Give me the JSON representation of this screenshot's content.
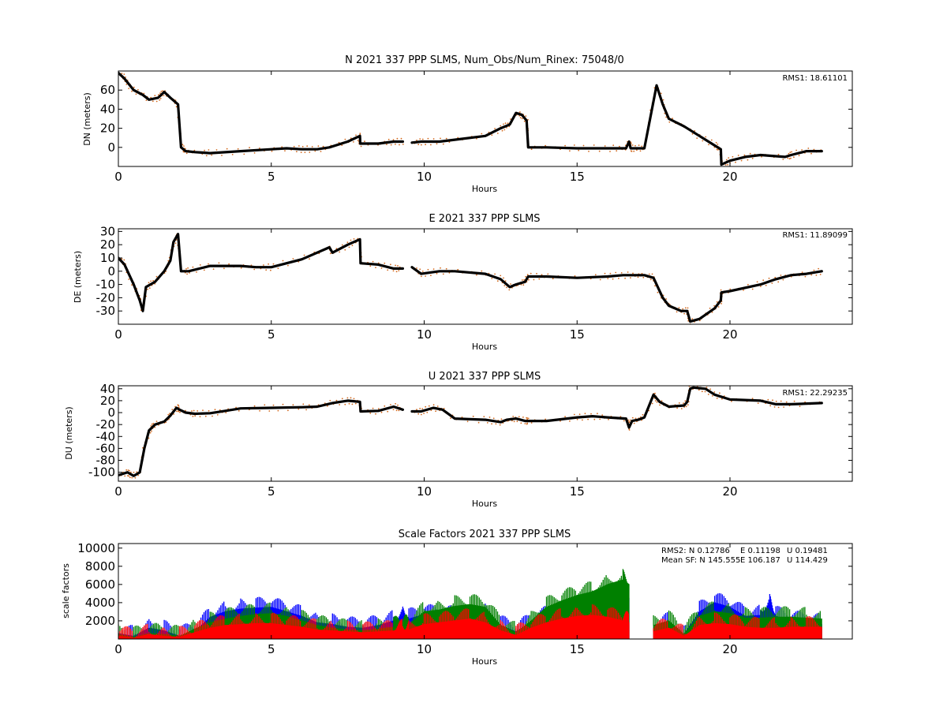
{
  "chart_data": [
    {
      "type": "scatter",
      "title": "N 2021 337 PPP  SLMS, Num_Obs/Num_Rinex: 75048/0",
      "xlabel": "Hours",
      "ylabel": "DN (meters)",
      "xlim": [
        0,
        24
      ],
      "ylim": [
        -20,
        80
      ],
      "xticks": [
        0,
        5,
        10,
        15,
        20
      ],
      "yticks": [
        0,
        20,
        40,
        60
      ],
      "annotation": "RMS1: 18.61101",
      "annotation_color": "#0000ff",
      "series": [
        {
          "color": "#000000",
          "outlier_color": "#d2691e",
          "x": [
            0,
            0.2,
            0.5,
            0.8,
            1.0,
            1.3,
            1.5,
            1.7,
            1.95,
            2.05,
            2.2,
            2.5,
            3.0,
            4.0,
            5.0,
            5.5,
            6.0,
            6.5,
            6.9,
            7.5,
            7.9,
            7.91,
            8.5,
            9.0,
            9.3,
            9.5,
            9.6,
            9.9,
            10.5,
            11.0,
            12.0,
            12.5,
            12.8,
            13.0,
            13.2,
            13.35,
            13.4,
            14.0,
            15.0,
            16.0,
            16.6,
            16.7,
            16.75,
            17.0,
            17.2,
            17.6,
            17.8,
            18.0,
            18.5,
            19.0,
            19.5,
            19.7,
            19.72,
            20.0,
            20.5,
            21.0,
            21.8,
            22.0,
            22.5,
            23.0
          ],
          "y": [
            78,
            72,
            60,
            55,
            50,
            52,
            58,
            52,
            45,
            0,
            -4,
            -5,
            -6,
            -4,
            -2,
            -1,
            -2,
            -2,
            0,
            6,
            12,
            4,
            4,
            6,
            6,
            null,
            5,
            6,
            6,
            8,
            12,
            20,
            24,
            36,
            34,
            28,
            0,
            0,
            -1,
            -1,
            -1,
            6,
            -1,
            -1,
            -1,
            65,
            45,
            30,
            22,
            12,
            2,
            -2,
            -18,
            -14,
            -10,
            -8,
            -10,
            -8,
            -4,
            -4
          ]
        }
      ]
    },
    {
      "type": "scatter",
      "title": "E 2021 337 PPP  SLMS",
      "xlabel": "Hours",
      "ylabel": "DE (meters)",
      "xlim": [
        0,
        24
      ],
      "ylim": [
        -40,
        32
      ],
      "xticks": [
        0,
        5,
        10,
        15,
        20
      ],
      "yticks": [
        -30,
        -20,
        -10,
        0,
        10,
        20,
        30
      ],
      "annotation": "RMS1: 11.89099",
      "annotation_color": "#0000ff",
      "series": [
        {
          "color": "#000000",
          "outlier_color": "#d2691e",
          "x": [
            0,
            0.2,
            0.5,
            0.7,
            0.8,
            0.9,
            1.2,
            1.5,
            1.7,
            1.8,
            1.95,
            2.05,
            2.3,
            3.0,
            4.0,
            4.5,
            5.0,
            6.0,
            6.9,
            7.0,
            7.5,
            7.9,
            7.92,
            8.5,
            9.0,
            9.3,
            9.5,
            9.6,
            9.9,
            10.5,
            11.0,
            12.0,
            12.5,
            12.8,
            13.0,
            13.3,
            13.4,
            14.0,
            15.0,
            16.0,
            16.5,
            17.0,
            17.2,
            17.5,
            17.8,
            18.0,
            18.4,
            18.6,
            18.7,
            19.0,
            19.5,
            19.7,
            19.72,
            20.0,
            21.0,
            21.5,
            22.0,
            22.5,
            23.0
          ],
          "y": [
            10,
            5,
            -10,
            -22,
            -30,
            -12,
            -8,
            0,
            8,
            22,
            28,
            0,
            0,
            4,
            4,
            3,
            3,
            9,
            18,
            14,
            20,
            24,
            6,
            5,
            2,
            2,
            null,
            3,
            -2,
            0,
            0,
            -2,
            -6,
            -12,
            -10,
            -8,
            -4,
            -4,
            -5,
            -4,
            -3,
            -3,
            -3,
            -5,
            -20,
            -26,
            -30,
            -30,
            -38,
            -36,
            -28,
            -22,
            -16,
            -15,
            -10,
            -6,
            -3,
            -2,
            0
          ]
        }
      ]
    },
    {
      "type": "scatter",
      "title": "U 2021 337 PPP  SLMS",
      "xlabel": "Hours",
      "ylabel": "DU (meters)",
      "xlim": [
        0,
        24
      ],
      "ylim": [
        -115,
        45
      ],
      "xticks": [
        0,
        5,
        10,
        15,
        20
      ],
      "yticks": [
        -100,
        -80,
        -60,
        -40,
        -20,
        0,
        20,
        40
      ],
      "annotation": "RMS1: 22.29235",
      "annotation_color": "#0000ff",
      "series": [
        {
          "color": "#000000",
          "outlier_color": "#d2691e",
          "x": [
            0,
            0.3,
            0.5,
            0.7,
            0.85,
            1.0,
            1.2,
            1.5,
            1.7,
            1.9,
            2.0,
            2.2,
            2.5,
            3.0,
            3.5,
            4.0,
            5.0,
            6.0,
            6.5,
            7.0,
            7.5,
            7.9,
            7.92,
            8.5,
            9.0,
            9.3,
            9.5,
            9.6,
            9.9,
            10.3,
            10.6,
            11.0,
            12.0,
            12.5,
            12.7,
            13.0,
            13.3,
            13.4,
            14.0,
            15.0,
            15.5,
            16.0,
            16.6,
            16.7,
            16.8,
            17.0,
            17.2,
            17.5,
            17.7,
            18.0,
            18.5,
            18.6,
            18.7,
            18.8,
            19.2,
            19.5,
            20.0,
            21.0,
            21.5,
            22.0,
            23.0
          ],
          "y": [
            -105,
            -100,
            -106,
            -100,
            -60,
            -30,
            -20,
            -15,
            -5,
            8,
            5,
            0,
            -2,
            -1,
            3,
            7,
            8,
            9,
            10,
            16,
            20,
            18,
            2,
            3,
            10,
            5,
            null,
            2,
            2,
            8,
            5,
            -10,
            -12,
            -16,
            -12,
            -10,
            -14,
            -14,
            -14,
            -8,
            -6,
            -8,
            -10,
            -25,
            -14,
            -12,
            -8,
            30,
            18,
            10,
            12,
            18,
            40,
            42,
            40,
            30,
            22,
            20,
            14,
            14,
            16
          ]
        }
      ]
    },
    {
      "type": "scatter",
      "title": "Scale Factors 2021 337 PPP  SLMS",
      "xlabel": "Hours",
      "ylabel": "scale factors",
      "xlim": [
        0,
        24
      ],
      "ylim": [
        0,
        10500
      ],
      "xticks": [
        0,
        5,
        10,
        15,
        20
      ],
      "yticks": [
        2000,
        4000,
        6000,
        8000,
        10000
      ],
      "annotations": [
        {
          "text": "RMS2: N  0.12786",
          "color": "#0000ff"
        },
        {
          "text": "E  0.11198",
          "color": "#008000"
        },
        {
          "text": "U  0.19481",
          "color": "#ff0000"
        },
        {
          "text": "Mean SF: N 145.555",
          "color": "#0000ff"
        },
        {
          "text": "E 106.187",
          "color": "#008000"
        },
        {
          "text": "U 114.429",
          "color": "#ff0000"
        }
      ],
      "series": [
        {
          "name": "N",
          "color": "#0000ff",
          "x": [
            0,
            0.5,
            1.0,
            1.5,
            2.0,
            2.5,
            3.0,
            3.5,
            4.0,
            4.5,
            5.0,
            5.5,
            6.0,
            6.5,
            7.0,
            7.5,
            8.0,
            8.5,
            9.0,
            9.3,
            9.5,
            10.0,
            10.5,
            11.0,
            11.5,
            12.0,
            12.5,
            13.0,
            13.5,
            14.0,
            14.5,
            15.0,
            15.5,
            16.0,
            16.5,
            16.7,
            17.0,
            17.5,
            18.0,
            18.5,
            19.0,
            19.5,
            20.0,
            20.5,
            21.0,
            21.3,
            21.5,
            22.0,
            22.5,
            23.0
          ],
          "y": [
            600,
            300,
            1200,
            900,
            300,
            800,
            2400,
            3000,
            3300,
            3400,
            3500,
            3000,
            2500,
            1800,
            1600,
            1300,
            1200,
            1500,
            2000,
            2500,
            2200,
            2700,
            2500,
            2500,
            2500,
            2700,
            1500,
            800,
            1800,
            2500,
            3000,
            3200,
            3500,
            4000,
            5000,
            4500,
            null,
            1200,
            1800,
            500,
            3000,
            4000,
            3500,
            2500,
            2600,
            3800,
            2500,
            2000,
            1800,
            1600
          ]
        },
        {
          "name": "E",
          "color": "#008000",
          "x": [
            0,
            0.5,
            1.0,
            1.5,
            2.0,
            2.5,
            3.0,
            3.5,
            4.0,
            4.5,
            5.0,
            5.5,
            6.0,
            6.5,
            7.0,
            7.5,
            8.0,
            8.5,
            9.0,
            9.3,
            9.5,
            10.0,
            10.5,
            11.0,
            11.5,
            12.0,
            12.5,
            13.0,
            13.5,
            14.0,
            14.5,
            15.0,
            15.5,
            16.0,
            16.5,
            16.7,
            17.0,
            17.5,
            18.0,
            18.5,
            19.0,
            19.5,
            20.0,
            20.5,
            21.0,
            21.5,
            22.0,
            22.5,
            23.0
          ],
          "y": [
            500,
            200,
            600,
            500,
            300,
            1100,
            1800,
            2200,
            2500,
            2700,
            2800,
            2500,
            2000,
            1500,
            1200,
            1000,
            900,
            1100,
            1300,
            1500,
            1500,
            3000,
            3200,
            3600,
            3800,
            3500,
            1500,
            700,
            2000,
            3500,
            4200,
            4800,
            5200,
            6000,
            6500,
            6000,
            null,
            1500,
            2000,
            500,
            2500,
            3000,
            2800,
            2300,
            2300,
            2400,
            2400,
            2300,
            2200
          ]
        },
        {
          "name": "U",
          "color": "#ff0000",
          "x": [
            0,
            0.5,
            1.0,
            1.5,
            2.0,
            2.5,
            3.0,
            3.5,
            4.0,
            4.5,
            5.0,
            5.5,
            6.0,
            6.5,
            7.0,
            7.5,
            8.0,
            8.5,
            9.0,
            9.3,
            9.5,
            10.0,
            10.5,
            11.0,
            11.5,
            12.0,
            12.5,
            13.0,
            13.5,
            14.0,
            14.5,
            15.0,
            15.5,
            16.0,
            16.5,
            16.7,
            17.0,
            17.5,
            18.0,
            18.5,
            19.0,
            19.5,
            20.0,
            20.5,
            21.0,
            21.5,
            22.0,
            22.5,
            23.0
          ],
          "y": [
            300,
            100,
            500,
            300,
            200,
            700,
            1200,
            1500,
            1600,
            1700,
            1700,
            1500,
            1300,
            1000,
            900,
            800,
            700,
            800,
            900,
            1000,
            1000,
            1600,
            1800,
            2000,
            2200,
            1800,
            900,
            400,
            1200,
            1800,
            2200,
            2500,
            2600,
            2400,
            2000,
            1800,
            null,
            800,
            1200,
            300,
            1500,
            1700,
            1600,
            1300,
            1200,
            1200,
            1300,
            1300,
            1300
          ]
        }
      ]
    }
  ]
}
